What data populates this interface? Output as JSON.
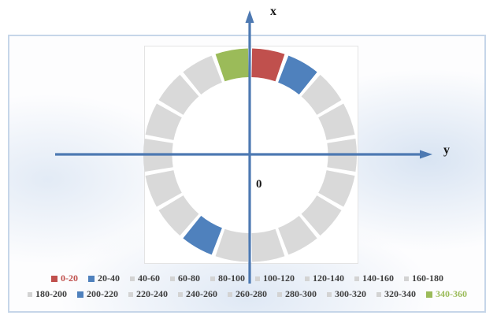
{
  "figure": {
    "x_axis_label": "x",
    "y_axis_label": "y",
    "origin_label": "0",
    "axis_color": "#4d79b2"
  },
  "chart_data": {
    "type": "pie",
    "subtype": "donut",
    "title": "",
    "description": "Donut ring of 18 equal 20-degree sectors over x/y axes centered at origin 0; highlighted sectors: 0-20 red, 20-40 blue, 200-220 blue, 340-360 green; all others gray",
    "start_angle_deg": 0,
    "clockwise_from_top": true,
    "categories": [
      "0-20",
      "20-40",
      "40-60",
      "60-80",
      "80-100",
      "100-120",
      "120-140",
      "140-160",
      "160-180",
      "180-200",
      "200-220",
      "220-240",
      "240-260",
      "260-280",
      "280-300",
      "300-320",
      "320-340",
      "340-360"
    ],
    "values": [
      20,
      20,
      20,
      20,
      20,
      20,
      20,
      20,
      20,
      20,
      20,
      20,
      20,
      20,
      20,
      20,
      20,
      20
    ],
    "segment_colors": [
      "#c0504d",
      "#4f81bd",
      "#d9d9d9",
      "#d9d9d9",
      "#d9d9d9",
      "#d9d9d9",
      "#d9d9d9",
      "#d9d9d9",
      "#d9d9d9",
      "#d9d9d9",
      "#4f81bd",
      "#d9d9d9",
      "#d9d9d9",
      "#d9d9d9",
      "#d9d9d9",
      "#d9d9d9",
      "#d9d9d9",
      "#9bbb59"
    ],
    "default_color": "#d9d9d9",
    "highlight_colors": {
      "0-20": "#c0504d",
      "20-40": "#4f81bd",
      "200-220": "#4f81bd",
      "340-360": "#9bbb59"
    },
    "legend_position": "bottom"
  },
  "legend": {
    "default_text_color": "#3f3f3f",
    "rows": [
      [
        {
          "label": "0-20",
          "marker_color": "#c0504d",
          "text_color": "#c0504d"
        },
        {
          "label": "20-40",
          "marker_color": "#4f81bd"
        },
        {
          "label": "40-60",
          "marker_color": "#d3d3d3"
        },
        {
          "label": "60-80",
          "marker_color": "#d3d3d3"
        },
        {
          "label": "80-100",
          "marker_color": "#d3d3d3"
        },
        {
          "label": "100-120",
          "marker_color": "#d3d3d3"
        },
        {
          "label": "120-140",
          "marker_color": "#d3d3d3"
        },
        {
          "label": "140-160",
          "marker_color": "#d3d3d3"
        },
        {
          "label": "160-180",
          "marker_color": "#d3d3d3"
        }
      ],
      [
        {
          "label": "180-200",
          "marker_color": "#d3d3d3"
        },
        {
          "label": "200-220",
          "marker_color": "#4f81bd"
        },
        {
          "label": "220-240",
          "marker_color": "#d3d3d3"
        },
        {
          "label": "240-260",
          "marker_color": "#d3d3d3"
        },
        {
          "label": "260-280",
          "marker_color": "#d3d3d3"
        },
        {
          "label": "280-300",
          "marker_color": "#d3d3d3"
        },
        {
          "label": "300-320",
          "marker_color": "#d3d3d3"
        },
        {
          "label": "320-340",
          "marker_color": "#d3d3d3"
        },
        {
          "label": "340-360",
          "marker_color": "#9bbb59",
          "text_color": "#9bbb59"
        }
      ]
    ]
  }
}
